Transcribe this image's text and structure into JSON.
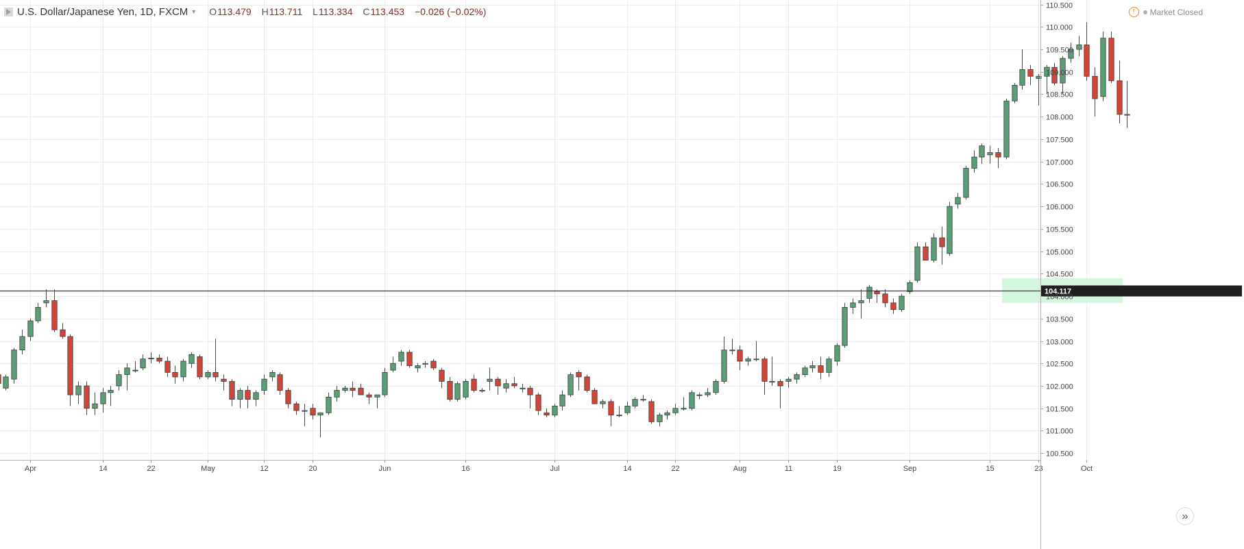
{
  "header": {
    "title": "U.S. Dollar/Japanese Yen, 1D, FXCM",
    "open_label": "O",
    "open": "113.479",
    "high_label": "H",
    "high": "113.711",
    "low_label": "L",
    "low": "113.334",
    "close_label": "C",
    "close": "113.453",
    "change": "−0.026 (−0.02%)",
    "market_status": "Market Closed"
  },
  "colors": {
    "up": "#5b9e76",
    "down": "#d0453a",
    "grid": "#ececec",
    "axis_text": "#444444",
    "horizontal_line": "#3a3a3a",
    "zone_fill": "#ccf5d9"
  },
  "chart_data": {
    "type": "candlestick",
    "title": "U.S. Dollar/Japanese Yen, 1D, FXCM",
    "ylim": [
      100.35,
      110.6
    ],
    "y_ticks": [
      "100.500",
      "101.000",
      "101.500",
      "102.000",
      "102.500",
      "103.000",
      "103.500",
      "104.000",
      "104.500",
      "105.000",
      "105.500",
      "106.000",
      "106.500",
      "107.000",
      "107.500",
      "108.000",
      "108.500",
      "109.000",
      "109.500",
      "110.000",
      "110.500"
    ],
    "x_ticks": [
      {
        "label": "Apr",
        "index": 4
      },
      {
        "label": "14",
        "index": 13
      },
      {
        "label": "22",
        "index": 19
      },
      {
        "label": "May",
        "index": 26
      },
      {
        "label": "12",
        "index": 33
      },
      {
        "label": "20",
        "index": 39
      },
      {
        "label": "Jun",
        "index": 48
      },
      {
        "label": "16",
        "index": 58
      },
      {
        "label": "Jul",
        "index": 69
      },
      {
        "label": "14",
        "index": 78
      },
      {
        "label": "22",
        "index": 84
      },
      {
        "label": "Aug",
        "index": 92
      },
      {
        "label": "11",
        "index": 98
      },
      {
        "label": "19",
        "index": 104
      },
      {
        "label": "Sep",
        "index": 113
      },
      {
        "label": "15",
        "index": 123
      },
      {
        "label": "23",
        "index": 129
      },
      {
        "label": "Oct",
        "index": 135
      }
    ],
    "horizontal_line": {
      "value": 104.117,
      "label": "104.117"
    },
    "highlight_zone": {
      "from_index": 124.5,
      "to_index": 139.5,
      "low": 103.85,
      "high": 104.4
    },
    "candles": [
      [
        102.25,
        102.35,
        102.0,
        102.05
      ],
      [
        101.95,
        102.25,
        101.9,
        102.2
      ],
      [
        102.15,
        102.85,
        102.05,
        102.8
      ],
      [
        102.8,
        103.25,
        102.7,
        103.1
      ],
      [
        103.1,
        103.5,
        103.0,
        103.45
      ],
      [
        103.45,
        103.85,
        103.4,
        103.75
      ],
      [
        103.85,
        104.15,
        103.75,
        103.9
      ],
      [
        103.9,
        104.15,
        103.2,
        103.25
      ],
      [
        103.25,
        103.4,
        103.05,
        103.1
      ],
      [
        103.1,
        103.15,
        101.55,
        101.8
      ],
      [
        101.8,
        102.1,
        101.6,
        102.0
      ],
      [
        102.0,
        102.1,
        101.35,
        101.5
      ],
      [
        101.5,
        101.85,
        101.35,
        101.6
      ],
      [
        101.6,
        101.95,
        101.4,
        101.85
      ],
      [
        101.85,
        102.0,
        101.55,
        101.9
      ],
      [
        102.0,
        102.35,
        101.9,
        102.25
      ],
      [
        102.25,
        102.5,
        101.9,
        102.4
      ],
      [
        102.35,
        102.55,
        102.3,
        102.35
      ],
      [
        102.4,
        102.7,
        102.35,
        102.6
      ],
      [
        102.6,
        102.75,
        102.5,
        102.62
      ],
      [
        102.62,
        102.7,
        102.5,
        102.55
      ],
      [
        102.55,
        102.65,
        102.2,
        102.3
      ],
      [
        102.3,
        102.45,
        102.05,
        102.2
      ],
      [
        102.2,
        102.6,
        102.1,
        102.55
      ],
      [
        102.5,
        102.75,
        102.4,
        102.7
      ],
      [
        102.65,
        102.7,
        102.15,
        102.2
      ],
      [
        102.2,
        102.35,
        102.15,
        102.3
      ],
      [
        102.3,
        103.05,
        102.1,
        102.2
      ],
      [
        102.15,
        102.25,
        101.9,
        102.1
      ],
      [
        102.1,
        102.15,
        101.55,
        101.7
      ],
      [
        101.7,
        101.95,
        101.5,
        101.9
      ],
      [
        101.9,
        102.0,
        101.5,
        101.7
      ],
      [
        101.7,
        101.9,
        101.55,
        101.85
      ],
      [
        101.9,
        102.25,
        101.8,
        102.15
      ],
      [
        102.2,
        102.35,
        102.1,
        102.3
      ],
      [
        102.25,
        102.3,
        101.8,
        101.9
      ],
      [
        101.9,
        101.95,
        101.5,
        101.6
      ],
      [
        101.6,
        101.65,
        101.35,
        101.45
      ],
      [
        101.45,
        101.6,
        101.1,
        101.45
      ],
      [
        101.5,
        101.6,
        101.25,
        101.35
      ],
      [
        101.35,
        101.4,
        100.85,
        101.4
      ],
      [
        101.4,
        101.85,
        101.35,
        101.75
      ],
      [
        101.75,
        102.0,
        101.65,
        101.9
      ],
      [
        101.9,
        102.0,
        101.85,
        101.95
      ],
      [
        101.95,
        102.1,
        101.75,
        101.9
      ],
      [
        101.95,
        102.05,
        101.8,
        101.8
      ],
      [
        101.8,
        101.85,
        101.6,
        101.75
      ],
      [
        101.75,
        101.8,
        101.5,
        101.8
      ],
      [
        101.8,
        102.4,
        101.75,
        102.3
      ],
      [
        102.35,
        102.65,
        102.3,
        102.5
      ],
      [
        102.55,
        102.8,
        102.45,
        102.75
      ],
      [
        102.75,
        102.8,
        102.4,
        102.45
      ],
      [
        102.4,
        102.5,
        102.3,
        102.45
      ],
      [
        102.5,
        102.55,
        102.4,
        102.5
      ],
      [
        102.55,
        102.6,
        102.35,
        102.4
      ],
      [
        102.35,
        102.4,
        101.95,
        102.1
      ],
      [
        102.1,
        102.2,
        101.65,
        101.7
      ],
      [
        101.7,
        102.1,
        101.65,
        102.05
      ],
      [
        101.75,
        102.15,
        101.7,
        102.1
      ],
      [
        102.15,
        102.25,
        101.85,
        101.9
      ],
      [
        101.9,
        101.95,
        101.85,
        101.9
      ],
      [
        102.1,
        102.4,
        101.9,
        102.15
      ],
      [
        102.15,
        102.2,
        101.8,
        102.0
      ],
      [
        101.95,
        102.15,
        101.85,
        102.05
      ],
      [
        102.05,
        102.2,
        101.95,
        102.0
      ],
      [
        101.95,
        102.05,
        101.85,
        101.95
      ],
      [
        101.95,
        102.0,
        101.5,
        101.8
      ],
      [
        101.8,
        101.85,
        101.35,
        101.45
      ],
      [
        101.4,
        101.5,
        101.3,
        101.35
      ],
      [
        101.35,
        101.6,
        101.3,
        101.55
      ],
      [
        101.55,
        101.9,
        101.45,
        101.8
      ],
      [
        101.8,
        102.3,
        101.75,
        102.25
      ],
      [
        102.3,
        102.35,
        101.9,
        102.2
      ],
      [
        102.2,
        102.25,
        101.85,
        101.9
      ],
      [
        101.9,
        101.95,
        101.6,
        101.6
      ],
      [
        101.6,
        101.7,
        101.5,
        101.65
      ],
      [
        101.65,
        101.7,
        101.1,
        101.35
      ],
      [
        101.35,
        101.55,
        101.3,
        101.35
      ],
      [
        101.4,
        101.65,
        101.35,
        101.55
      ],
      [
        101.55,
        101.75,
        101.5,
        101.7
      ],
      [
        101.7,
        101.8,
        101.65,
        101.7
      ],
      [
        101.65,
        101.7,
        101.15,
        101.2
      ],
      [
        101.2,
        101.4,
        101.1,
        101.35
      ],
      [
        101.35,
        101.45,
        101.25,
        101.4
      ],
      [
        101.4,
        101.6,
        101.35,
        101.5
      ],
      [
        101.5,
        101.75,
        101.45,
        101.5
      ],
      [
        101.5,
        101.9,
        101.45,
        101.85
      ],
      [
        101.8,
        101.85,
        101.7,
        101.8
      ],
      [
        101.8,
        101.95,
        101.75,
        101.85
      ],
      [
        101.85,
        102.15,
        101.8,
        102.1
      ],
      [
        102.1,
        103.1,
        102.05,
        102.8
      ],
      [
        102.8,
        103.05,
        102.7,
        102.8
      ],
      [
        102.8,
        102.9,
        102.35,
        102.55
      ],
      [
        102.55,
        102.65,
        102.45,
        102.6
      ],
      [
        102.6,
        103.0,
        102.55,
        102.6
      ],
      [
        102.6,
        102.65,
        101.8,
        102.1
      ],
      [
        102.1,
        102.65,
        102.0,
        102.1
      ],
      [
        102.1,
        102.15,
        101.5,
        102.0
      ],
      [
        102.1,
        102.2,
        101.95,
        102.15
      ],
      [
        102.15,
        102.3,
        102.05,
        102.25
      ],
      [
        102.25,
        102.45,
        102.2,
        102.4
      ],
      [
        102.4,
        102.55,
        102.3,
        102.45
      ],
      [
        102.45,
        102.65,
        102.15,
        102.3
      ],
      [
        102.3,
        102.65,
        102.2,
        102.6
      ],
      [
        102.55,
        102.95,
        102.45,
        102.9
      ],
      [
        102.9,
        103.85,
        102.85,
        103.75
      ],
      [
        103.75,
        103.95,
        103.6,
        103.85
      ],
      [
        103.85,
        104.15,
        103.5,
        103.9
      ],
      [
        103.95,
        104.25,
        103.85,
        104.2
      ],
      [
        104.1,
        104.15,
        103.85,
        104.05
      ],
      [
        104.05,
        104.15,
        103.75,
        103.85
      ],
      [
        103.85,
        103.95,
        103.6,
        103.7
      ],
      [
        103.7,
        104.05,
        103.65,
        104.0
      ],
      [
        104.1,
        104.35,
        104.05,
        104.3
      ],
      [
        104.35,
        105.2,
        104.3,
        105.1
      ],
      [
        105.1,
        105.2,
        104.8,
        104.8
      ],
      [
        104.8,
        105.4,
        104.75,
        105.3
      ],
      [
        105.3,
        105.55,
        104.7,
        105.1
      ],
      [
        104.95,
        106.1,
        104.9,
        106.0
      ],
      [
        106.05,
        106.3,
        105.95,
        106.2
      ],
      [
        106.2,
        106.9,
        106.15,
        106.85
      ],
      [
        106.85,
        107.25,
        106.75,
        107.1
      ],
      [
        107.1,
        107.4,
        106.95,
        107.35
      ],
      [
        107.15,
        107.35,
        106.95,
        107.2
      ],
      [
        107.2,
        107.3,
        106.85,
        107.1
      ],
      [
        107.1,
        108.4,
        107.05,
        108.35
      ],
      [
        108.35,
        108.75,
        108.3,
        108.7
      ],
      [
        108.7,
        109.5,
        108.6,
        109.05
      ],
      [
        109.05,
        109.15,
        108.7,
        108.9
      ],
      [
        108.85,
        108.95,
        108.25,
        108.9
      ],
      [
        108.9,
        109.15,
        108.5,
        109.1
      ],
      [
        109.1,
        109.2,
        108.7,
        108.75
      ],
      [
        108.75,
        109.35,
        108.5,
        109.3
      ],
      [
        109.3,
        109.65,
        109.2,
        109.5
      ],
      [
        109.5,
        109.8,
        109.35,
        109.6
      ],
      [
        109.6,
        110.1,
        108.8,
        108.9
      ],
      [
        108.9,
        109.1,
        108.0,
        108.4
      ],
      [
        108.45,
        109.9,
        108.35,
        109.75
      ],
      [
        109.75,
        109.9,
        108.75,
        108.8
      ],
      [
        108.8,
        109.25,
        107.85,
        108.05
      ],
      [
        108.05,
        108.8,
        107.75,
        108.05
      ]
    ]
  },
  "controls": {
    "scroll_right_glyph": "»"
  }
}
